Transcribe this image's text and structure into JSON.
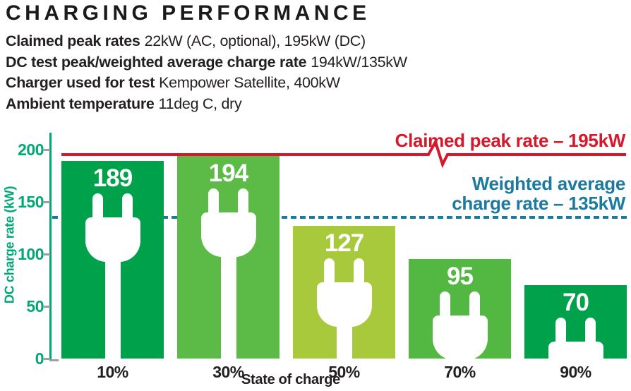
{
  "header": {
    "title": "CHARGING PERFORMANCE",
    "specs": [
      {
        "label": "Claimed peak rates",
        "value": "22kW (AC, optional), 195kW (DC)"
      },
      {
        "label": "DC test peak/weighted average charge rate",
        "value": "194kW/135kW"
      },
      {
        "label": "Charger used for test",
        "value": "Kempower Satellite, 400kW"
      },
      {
        "label": "Ambient temperature",
        "value": "11deg C, dry"
      }
    ]
  },
  "chart_data": {
    "type": "bar",
    "categories": [
      "10%",
      "30%",
      "50%",
      "70%",
      "90%"
    ],
    "values": [
      189,
      194,
      127,
      95,
      70
    ],
    "bar_colors": [
      "#00a14b",
      "#5cbb46",
      "#a8c93c",
      "#52b841",
      "#00a14b"
    ],
    "xlabel": "State of charge",
    "ylabel": "DC charge rate (kW)",
    "yticks": [
      0,
      50,
      100,
      150,
      200
    ],
    "ylim": [
      0,
      210
    ],
    "grid": false,
    "legend": "none",
    "bar_icon": "plug-icon",
    "value_label_color": "#ffffff",
    "reference_lines": [
      {
        "value": 195,
        "style": "solid",
        "color": "#d7182a",
        "label": "Claimed peak rate – 195kW"
      },
      {
        "value": 135,
        "style": "dashed",
        "color": "#1c7aa0",
        "label": "Weighted average charge rate – 135kW",
        "label_lines": [
          "Weighted average",
          "charge rate – 135kW"
        ]
      }
    ]
  },
  "colors": {
    "axis_green": "#00a876",
    "tick_gray": "#9aa0a0",
    "text_dark": "#231f20",
    "background": "#ffffff"
  }
}
